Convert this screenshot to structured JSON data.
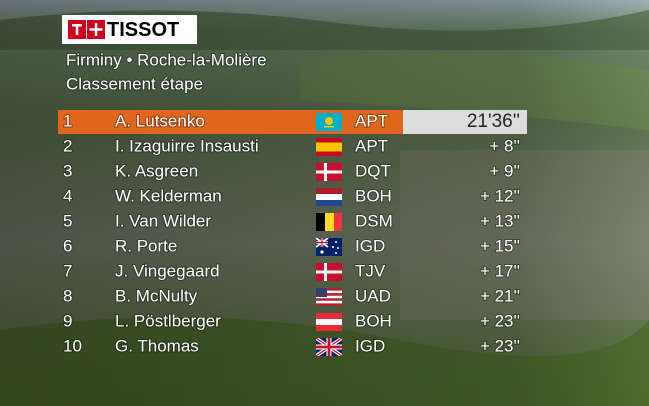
{
  "header": {
    "brand": "TISSOT",
    "stage": "Firminy • Roche-la-Molière",
    "classification": "Classement étape"
  },
  "standings": {
    "rows": [
      {
        "rank": 1,
        "rider": "A. Lutsenko",
        "team": "APT",
        "time": "21'36''"
      },
      {
        "rank": 2,
        "rider": "I. Izaguirre Insausti",
        "team": "APT",
        "time": "+ 8''"
      },
      {
        "rank": 3,
        "rider": "K. Asgreen",
        "team": "DQT",
        "time": "+ 9''"
      },
      {
        "rank": 4,
        "rider": "W. Kelderman",
        "team": "BOH",
        "time": "+ 12''"
      },
      {
        "rank": 5,
        "rider": "I. Van Wilder",
        "team": "DSM",
        "time": "+ 13''"
      },
      {
        "rank": 6,
        "rider": "R. Porte",
        "team": "IGD",
        "time": "+ 15''"
      },
      {
        "rank": 7,
        "rider": "J. Vingegaard",
        "team": "TJV",
        "time": "+ 17''"
      },
      {
        "rank": 8,
        "rider": "B. McNulty",
        "team": "UAD",
        "time": "+ 21''"
      },
      {
        "rank": 9,
        "rider": "L. Pöstlberger",
        "team": "BOH",
        "time": "+ 23''"
      },
      {
        "rank": 10,
        "rider": "G. Thomas",
        "team": "IGD",
        "time": "+ 23''"
      }
    ]
  }
}
